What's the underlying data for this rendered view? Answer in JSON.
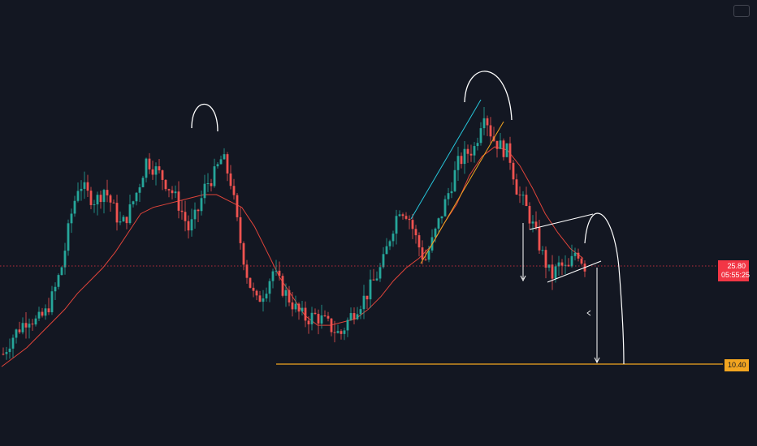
{
  "chart_data": {
    "type": "candlestick",
    "title": "",
    "xlabel": "",
    "ylabel": "",
    "y_scale": "linear",
    "grid": false,
    "colors": {
      "background": "#131722",
      "up": "#26a69a",
      "down": "#ef5350",
      "moving_average": "#e0443a",
      "support_line": "#f2a520",
      "current_price_line": "#f23645",
      "annotation": "#ffffff",
      "trend_teal": "#2196f3",
      "trend_orange": "#f2a520"
    },
    "price_labels": {
      "current_price": "25.80",
      "countdown": "05:55:25",
      "support_level": "10.40"
    },
    "series": [
      {
        "name": "",
        "kind": "close_path",
        "close": [
          12.0,
          14.5,
          16.2,
          17.8,
          17.0,
          18.4,
          21.5,
          26.0,
          33.5,
          39.0,
          37.0,
          36.0,
          38.0,
          35.0,
          32.0,
          34.5,
          38.0,
          42.5,
          41.0,
          39.5,
          37.5,
          35.0,
          31.5,
          34.0,
          38.5,
          40.0,
          43.0,
          39.0,
          30.5,
          24.0,
          20.0,
          22.0,
          25.0,
          22.5,
          20.5,
          18.5,
          17.5,
          18.0,
          17.2,
          16.0,
          15.0,
          17.5,
          19.5,
          21.0,
          23.5,
          26.0,
          31.0,
          35.0,
          34.0,
          30.0,
          26.5,
          30.0,
          34.0,
          38.0,
          42.0,
          43.5,
          44.5,
          50.5,
          46.0,
          44.5,
          43.5,
          37.5,
          35.0,
          31.5,
          27.5,
          24.0,
          26.0,
          25.0,
          28.5,
          25.8
        ]
      },
      {
        "name": "",
        "kind": "moving_average",
        "values": [
          10.0,
          11.5,
          13.0,
          15.0,
          17.0,
          19.0,
          21.5,
          23.5,
          25.5,
          28.0,
          31.0,
          34.0,
          35.0,
          35.5,
          36.0,
          36.5,
          37.0,
          37.0,
          36.0,
          35.0,
          32.0,
          28.0,
          24.0,
          21.0,
          18.0,
          16.5,
          16.5,
          17.0,
          17.5,
          19.0,
          21.0,
          23.5,
          25.5,
          27.0,
          29.0,
          32.5,
          35.5,
          40.0,
          43.0,
          44.5,
          44.0,
          41.5,
          38.0,
          34.0,
          31.0,
          28.5,
          27.0
        ]
      }
    ],
    "lines": [
      {
        "name": "",
        "type": "horizontal",
        "y": 10.4
      },
      {
        "name": "",
        "type": "horizontal",
        "y": 25.8
      }
    ]
  }
}
